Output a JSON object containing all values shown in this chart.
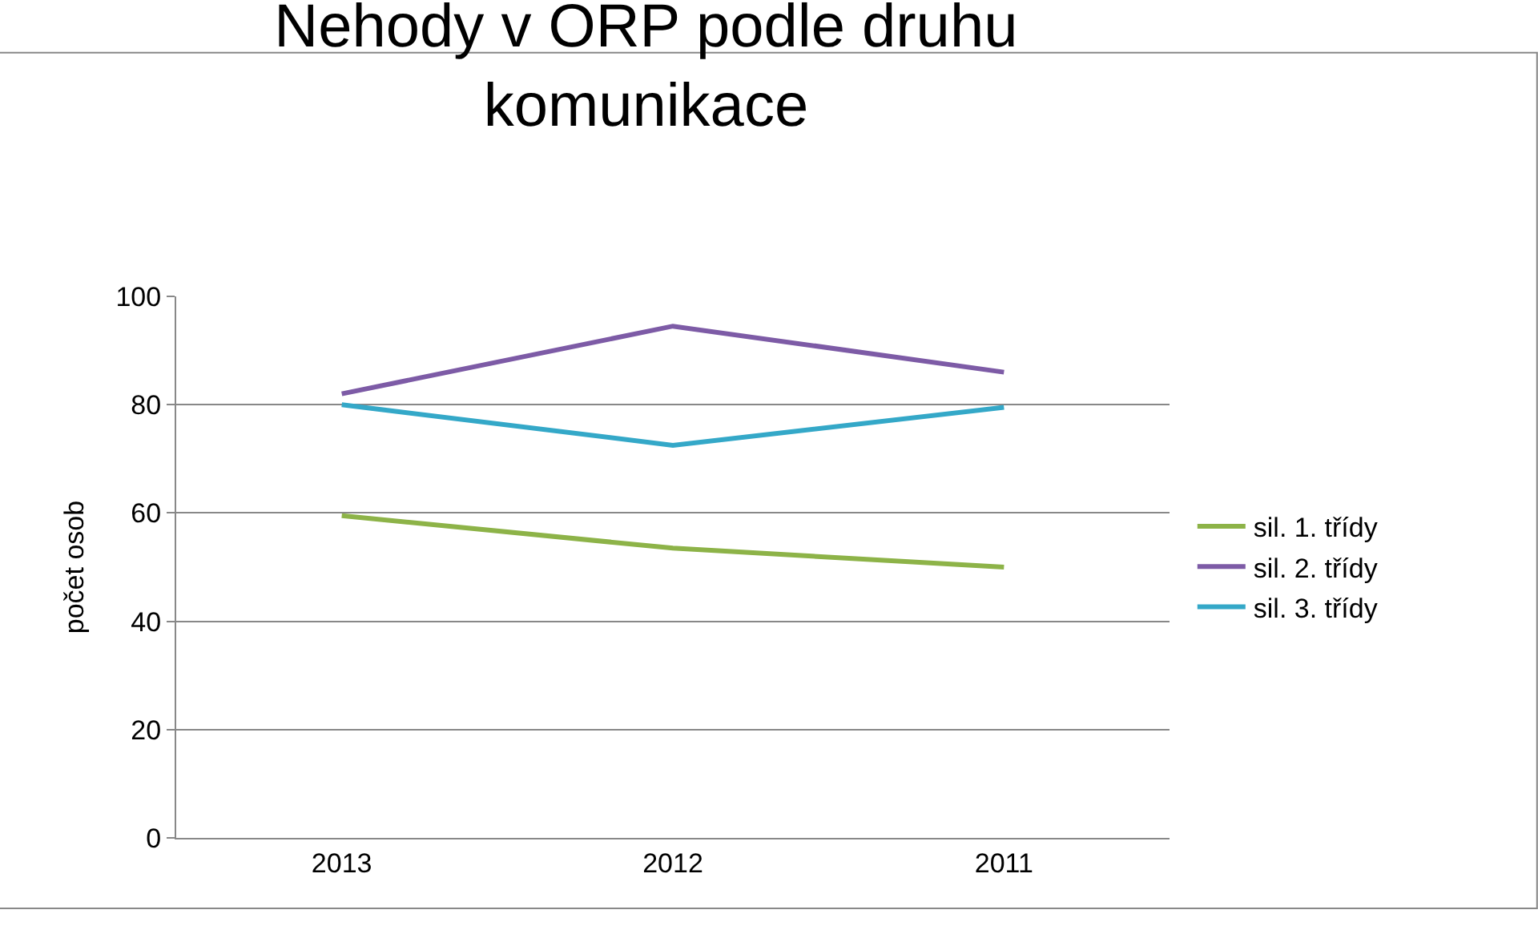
{
  "chart_data": {
    "type": "line",
    "title": "Nehody v ORP podle druhu komunikace",
    "ylabel": "počet osob",
    "categories": [
      "2013",
      "2012",
      "2011"
    ],
    "series": [
      {
        "name": "sil. 1. třídy",
        "color": "#8db348",
        "values": [
          59.5,
          53.5,
          50
        ]
      },
      {
        "name": "sil. 2. třídy",
        "color": "#7d5ba6",
        "values": [
          82,
          94.5,
          86
        ]
      },
      {
        "name": "sil. 3. třídy",
        "color": "#34a8c8",
        "values": [
          80,
          72.5,
          79.5
        ]
      }
    ],
    "ylim": [
      0,
      100
    ],
    "yticks": [
      0,
      20,
      40,
      60,
      80,
      100
    ],
    "grid": "y",
    "legend": "right",
    "marker": "none",
    "line_style": "solid"
  }
}
